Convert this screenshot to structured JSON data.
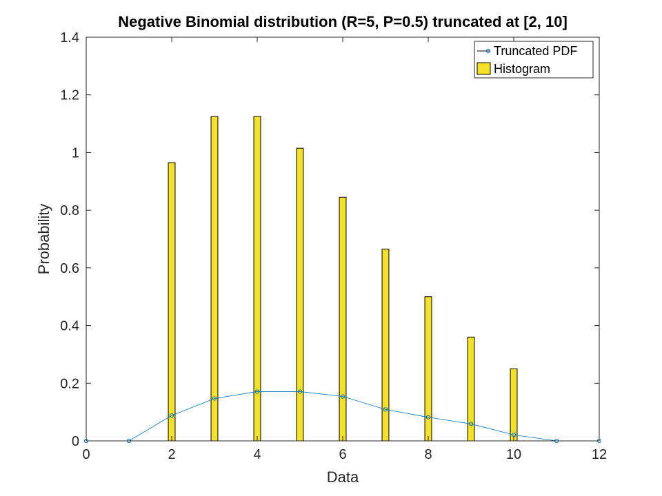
{
  "chart_data": {
    "type": "bar",
    "title": "Negative Binomial distribution (R=5, P=0.5) truncated at [2, 10]",
    "xlabel": "Data",
    "ylabel": "Probability",
    "xlim": [
      0,
      12
    ],
    "ylim": [
      0,
      1.4
    ],
    "xticks": [
      "0",
      "2",
      "4",
      "6",
      "8",
      "10",
      "12"
    ],
    "yticks": [
      "0",
      "0.2",
      "0.4",
      "0.6",
      "0.8",
      "1",
      "1.2",
      "1.4"
    ],
    "grid": false,
    "legend_position": "top-right",
    "series": [
      {
        "name": "Histogram",
        "kind": "bar",
        "color": "#f5e02a",
        "x": [
          2,
          3,
          4,
          5,
          6,
          7,
          8,
          9,
          10
        ],
        "values": [
          0.965,
          1.125,
          1.125,
          1.015,
          0.845,
          0.665,
          0.5,
          0.36,
          0.25
        ]
      },
      {
        "name": "Truncated PDF",
        "kind": "line-markers",
        "color": "#0072bd",
        "x": [
          0,
          1,
          2,
          3,
          4,
          5,
          6,
          7,
          8,
          9,
          10,
          11,
          12
        ],
        "values": [
          0,
          0,
          0.088,
          0.147,
          0.171,
          0.171,
          0.154,
          0.109,
          0.082,
          0.059,
          0.021,
          0,
          0
        ]
      }
    ]
  }
}
